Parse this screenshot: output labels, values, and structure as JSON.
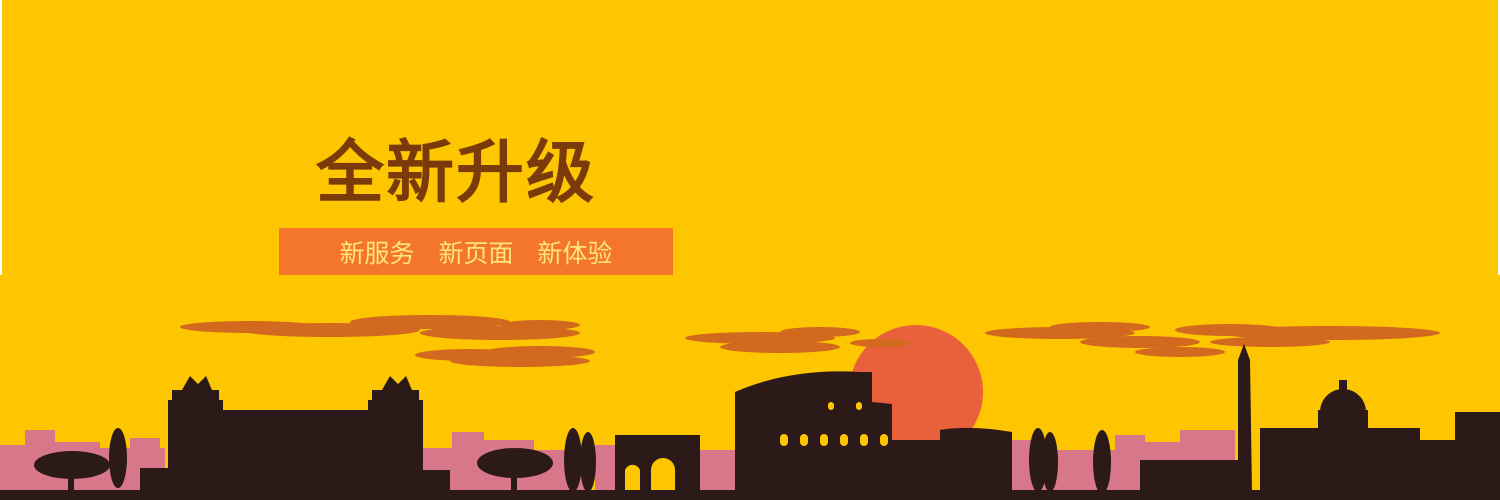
{
  "banner": {
    "headline": "全新升级",
    "tagline": [
      "新服务",
      "新页面",
      "新体验"
    ]
  },
  "colors": {
    "sky": "#fdc600",
    "headline": "#7a3a0a",
    "tagline_bg": "#f4762a",
    "tagline_text": "#ffe57a",
    "sun": "#e8603c",
    "clouds": "#d2691e",
    "far_buildings": "#d9778a",
    "silhouette": "#2b1a18"
  }
}
